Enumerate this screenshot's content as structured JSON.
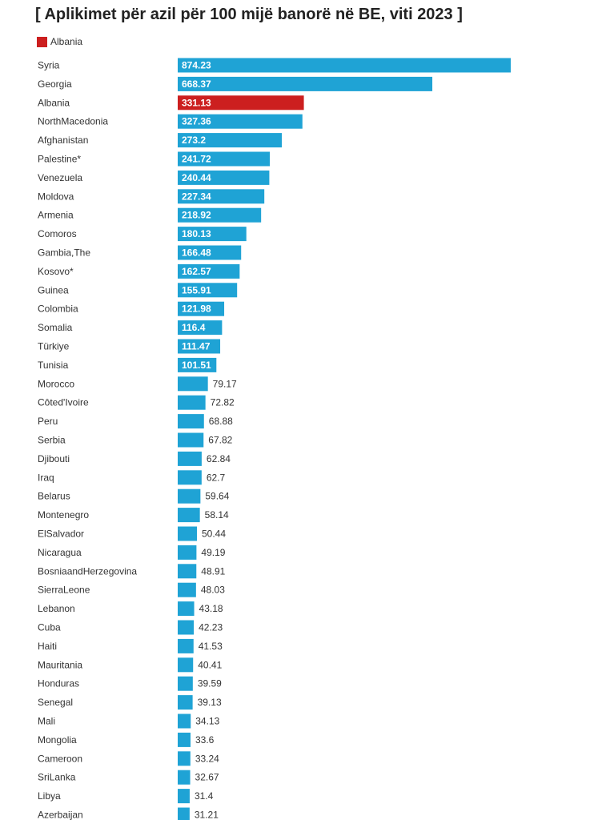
{
  "colors": {
    "bar": "#1fa3d5",
    "highlight": "#cc1f1f"
  },
  "chart_data": {
    "type": "bar",
    "orientation": "horizontal",
    "title": "[ Aplikimet për azil për 100 mijë banorë në BE, viti 2023 ]",
    "legend": {
      "position": "top-left",
      "items": [
        {
          "label": "Albania",
          "color": "#cc1f1f"
        }
      ]
    },
    "highlight_category": "Albania",
    "xlim": [
      0,
      874.23
    ],
    "grid": false,
    "categories": [
      "Syria",
      "Georgia",
      "Albania",
      "NorthMacedonia",
      "Afghanistan",
      "Palestine*",
      "Venezuela",
      "Moldova",
      "Armenia",
      "Comoros",
      "Gambia,The",
      "Kosovo*",
      "Guinea",
      "Colombia",
      "Somalia",
      "Türkiye",
      "Tunisia",
      "Morocco",
      "Côted'Ivoire",
      "Peru",
      "Serbia",
      "Djibouti",
      "Iraq",
      "Belarus",
      "Montenegro",
      "ElSalvador",
      "Nicaragua",
      "BosniaandHerzegovina",
      "SierraLeone",
      "Lebanon",
      "Cuba",
      "Haiti",
      "Mauritania",
      "Honduras",
      "Senegal",
      "Mali",
      "Mongolia",
      "Cameroon",
      "SriLanka",
      "Libya",
      "Azerbaijan"
    ],
    "values": [
      874.23,
      668.37,
      331.13,
      327.36,
      273.2,
      241.72,
      240.44,
      227.34,
      218.92,
      180.13,
      166.48,
      162.57,
      155.91,
      121.98,
      116.4,
      111.47,
      101.51,
      79.17,
      72.82,
      68.88,
      67.82,
      62.84,
      62.7,
      59.64,
      58.14,
      50.44,
      49.19,
      48.91,
      48.03,
      43.18,
      42.23,
      41.53,
      40.41,
      39.59,
      39.13,
      34.13,
      33.6,
      33.24,
      32.67,
      31.4,
      31.21
    ],
    "value_labels": [
      "874.23",
      "668.37",
      "331.13",
      "327.36",
      "273.2",
      "241.72",
      "240.44",
      "227.34",
      "218.92",
      "180.13",
      "166.48",
      "162.57",
      "155.91",
      "121.98",
      "116.4",
      "111.47",
      "101.51",
      "79.17",
      "72.82",
      "68.88",
      "67.82",
      "62.84",
      "62.7",
      "59.64",
      "58.14",
      "50.44",
      "49.19",
      "48.91",
      "48.03",
      "43.18",
      "42.23",
      "41.53",
      "40.41",
      "39.59",
      "39.13",
      "34.13",
      "33.6",
      "33.24",
      "32.67",
      "31.4",
      "31.21"
    ]
  }
}
